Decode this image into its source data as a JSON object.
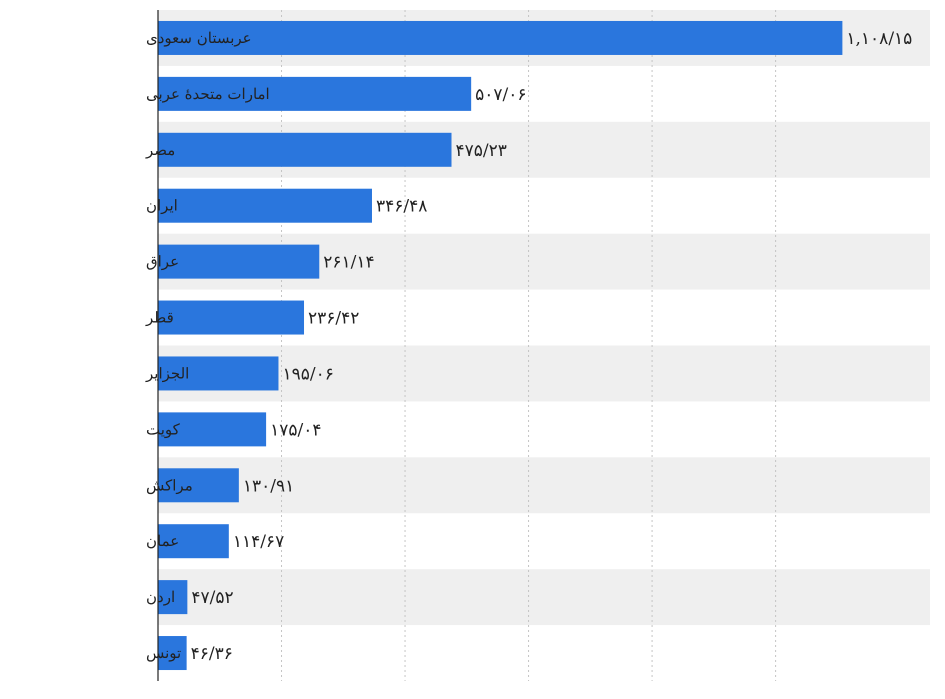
{
  "chart_data": {
    "type": "bar",
    "orientation": "horizontal",
    "title": "",
    "xlabel": "",
    "ylabel": "",
    "categories": [
      "عربستان سعودی",
      "امارات متحدهٔ عربی",
      "مصر",
      "ایران",
      "عراق",
      "قطر",
      "الجزایر",
      "کویت",
      "مراکش",
      "عمان",
      "اردن",
      "تونس"
    ],
    "values": [
      1108.15,
      507.06,
      475.23,
      346.48,
      261.14,
      236.42,
      195.06,
      175.04,
      130.91,
      114.67,
      47.52,
      46.36
    ],
    "value_labels": [
      "۱,۱۰۸/۱۵",
      "۵۰۷/۰۶",
      "۴۷۵/۲۳",
      "۳۴۶/۴۸",
      "۲۶۱/۱۴",
      "۲۳۶/۴۲",
      "۱۹۵/۰۶",
      "۱۷۵/۰۴",
      "۱۳۰/۹۱",
      "۱۱۴/۶۷",
      "۴۷/۵۲",
      "۴۶/۳۶"
    ],
    "xlim": [
      0,
      1250
    ],
    "grid": true,
    "legend": "none",
    "colors": {
      "bar": "#2a76dd",
      "band": "#efefef",
      "grid": "#c4c4c4",
      "axis": "#222222",
      "text": "#222222"
    }
  }
}
